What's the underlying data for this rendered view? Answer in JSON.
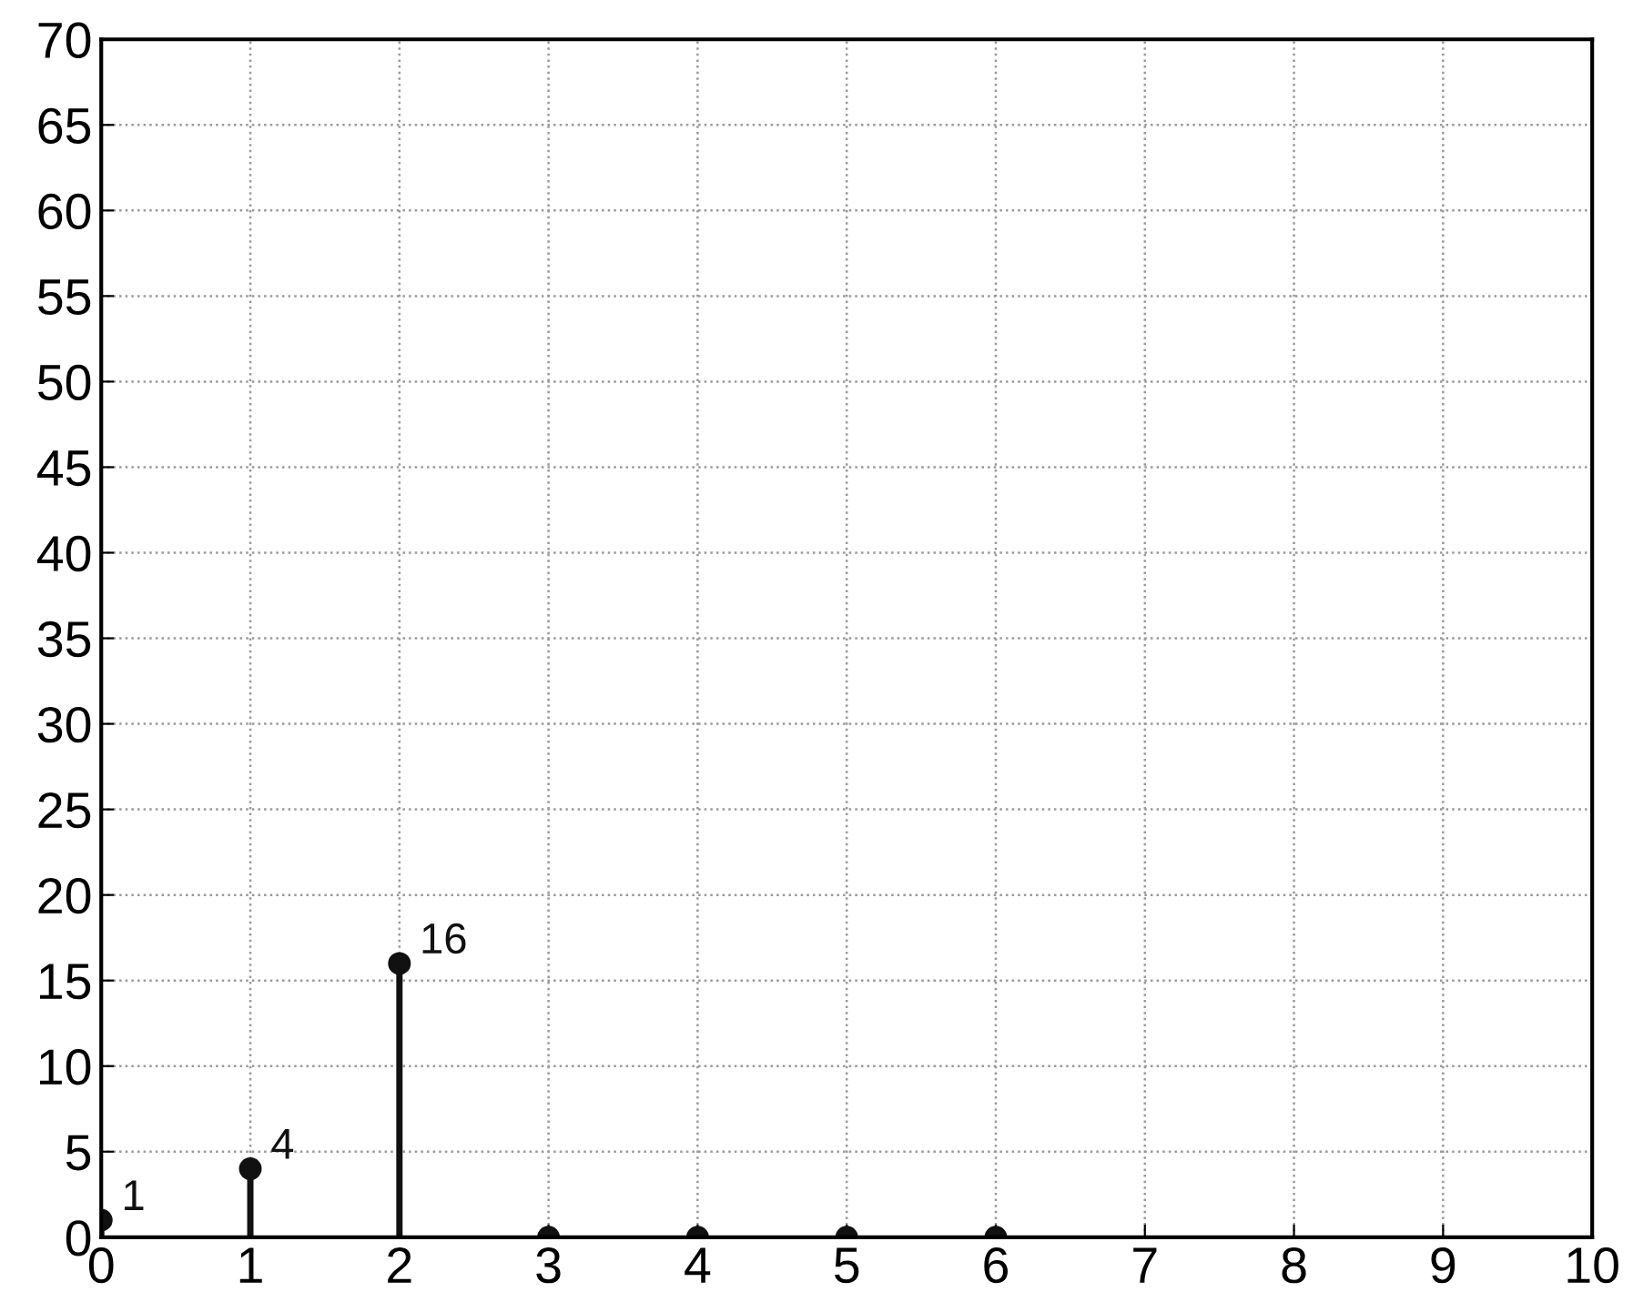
{
  "chart_data": {
    "type": "lollipop",
    "x": [
      0,
      1,
      2,
      3,
      4,
      5,
      6
    ],
    "values": [
      1,
      4,
      16,
      0,
      0,
      0,
      0
    ],
    "value_labels": [
      "1",
      "4",
      "16",
      null,
      null,
      null,
      null
    ],
    "color": "#111111",
    "marker": "circle",
    "xlim": [
      0,
      10
    ],
    "xticks": [
      0,
      1,
      2,
      3,
      4,
      5,
      6,
      7,
      8,
      9,
      10
    ],
    "ylim": [
      0,
      70
    ],
    "yticks": [
      0,
      5,
      10,
      15,
      20,
      25,
      30,
      35,
      40,
      45,
      50,
      55,
      60,
      65,
      70
    ],
    "grid": true
  }
}
